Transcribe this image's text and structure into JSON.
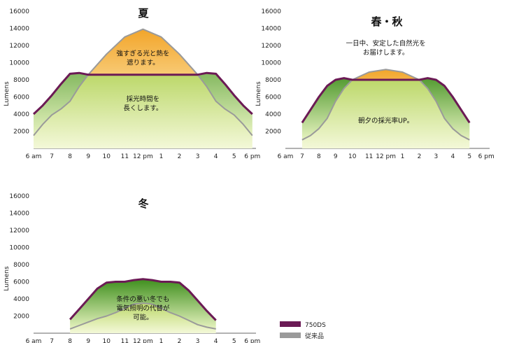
{
  "colors": {
    "series_750ds": "#6b1a55",
    "series_conventional": "#9a9a9a",
    "gain_fill_top": "#3f8f1e",
    "gain_fill_bottom": "#e7f3bf",
    "excess_fill_top": "#f2a52a",
    "excess_fill_bottom": "#fde9b4",
    "base_fill_top": "#bcd86a",
    "base_fill_bottom": "#f3f8d8"
  },
  "legend": {
    "items": [
      {
        "label": "750DS",
        "swatch": "series_750ds"
      },
      {
        "label": "従来品",
        "swatch": "series_conventional"
      }
    ]
  },
  "chart_data": [
    {
      "type": "area",
      "title": "夏",
      "ylabel": "Lumens",
      "ylim": [
        0,
        16000
      ],
      "yticks": [
        "16000",
        "14000",
        "12000",
        "10000",
        "8000",
        "6000",
        "4000",
        "2000"
      ],
      "xticks": [
        {
          "t": 6,
          "label": "6 am"
        },
        {
          "t": 7,
          "label": "7"
        },
        {
          "t": 8,
          "label": "8"
        },
        {
          "t": 9,
          "label": "9"
        },
        {
          "t": 10,
          "label": "10"
        },
        {
          "t": 11,
          "label": "11"
        },
        {
          "t": 12,
          "label": "12 pm"
        },
        {
          "t": 13,
          "label": "1"
        },
        {
          "t": 14,
          "label": "2"
        },
        {
          "t": 15,
          "label": "3"
        },
        {
          "t": 16,
          "label": "4"
        },
        {
          "t": 17,
          "label": "5"
        },
        {
          "t": 18,
          "label": "6 pm"
        }
      ],
      "xlim": [
        6,
        18.2
      ],
      "series": [
        {
          "name": "750DS",
          "x": [
            6,
            6.5,
            7,
            7.5,
            8,
            8.5,
            9,
            10,
            11,
            12,
            13,
            14,
            15,
            15.5,
            16,
            16.5,
            17,
            17.5,
            18
          ],
          "y": [
            4000,
            5000,
            6200,
            7500,
            8700,
            8800,
            8600,
            8600,
            8600,
            8600,
            8600,
            8600,
            8600,
            8800,
            8700,
            7500,
            6200,
            5000,
            4000
          ]
        },
        {
          "name": "従来品",
          "x": [
            6,
            6.5,
            7,
            7.5,
            8,
            8.5,
            9,
            10,
            11,
            12,
            13,
            14,
            15,
            15.5,
            16,
            16.5,
            17,
            17.5,
            18
          ],
          "y": [
            1500,
            2800,
            3900,
            4600,
            5500,
            7200,
            8600,
            11000,
            13000,
            13900,
            13000,
            11000,
            8600,
            7200,
            5500,
            4600,
            3900,
            2800,
            1500
          ]
        }
      ],
      "annotations": [
        {
          "lines": [
            "強すぎる光と熱を",
            "遮ります。"
          ],
          "x": 12,
          "y": 10800
        },
        {
          "lines": [
            "採光時間を",
            "長くします。"
          ],
          "x": 12,
          "y": 5500
        }
      ]
    },
    {
      "type": "area",
      "title": "春・秋",
      "ylabel": "Lumens",
      "ylim": [
        0,
        16000
      ],
      "yticks": [
        "16000",
        "14000",
        "12000",
        "10000",
        "8000",
        "6000",
        "4000",
        "2000"
      ],
      "xticks": [
        {
          "t": 6,
          "label": "6 am"
        },
        {
          "t": 7,
          "label": "7"
        },
        {
          "t": 8,
          "label": "8"
        },
        {
          "t": 9,
          "label": "9"
        },
        {
          "t": 10,
          "label": "10"
        },
        {
          "t": 11,
          "label": "11"
        },
        {
          "t": 12,
          "label": "12 pm"
        },
        {
          "t": 13,
          "label": "1"
        },
        {
          "t": 14,
          "label": "2"
        },
        {
          "t": 15,
          "label": "3"
        },
        {
          "t": 16,
          "label": "4"
        },
        {
          "t": 17,
          "label": "5"
        },
        {
          "t": 18,
          "label": "6 pm"
        }
      ],
      "xlim": [
        6,
        18.2
      ],
      "series": [
        {
          "name": "750DS",
          "x": [
            7,
            7.5,
            8,
            8.5,
            9,
            9.5,
            10,
            11,
            12,
            13,
            14,
            14.5,
            15,
            15.5,
            16,
            16.5,
            17
          ],
          "y": [
            3000,
            4500,
            6000,
            7300,
            8000,
            8200,
            8000,
            8000,
            8000,
            8000,
            8000,
            8200,
            8000,
            7300,
            6000,
            4500,
            3000
          ]
        },
        {
          "name": "従来品",
          "x": [
            7,
            7.5,
            8,
            8.5,
            9,
            9.5,
            10,
            11,
            12,
            13,
            14,
            14.5,
            15,
            15.5,
            16,
            16.5,
            17
          ],
          "y": [
            1000,
            1500,
            2300,
            3500,
            5500,
            7000,
            8000,
            8900,
            9200,
            8900,
            8000,
            7000,
            5500,
            3500,
            2300,
            1500,
            1000
          ]
        }
      ],
      "annotations": [
        {
          "lines": [
            "一日中、安定した自然光を",
            "お届けします。"
          ],
          "x": 12,
          "y": 12000
        },
        {
          "lines": [
            "朝夕の採光率UP。"
          ],
          "x": 12,
          "y": 3000
        }
      ]
    },
    {
      "type": "area",
      "title": "冬",
      "ylabel": "Lumens",
      "ylim": [
        0,
        16000
      ],
      "yticks": [
        "16000",
        "14000",
        "12000",
        "10000",
        "8000",
        "6000",
        "4000",
        "2000"
      ],
      "xticks": [
        {
          "t": 6,
          "label": "6 am"
        },
        {
          "t": 7,
          "label": "7"
        },
        {
          "t": 8,
          "label": "8"
        },
        {
          "t": 9,
          "label": "9"
        },
        {
          "t": 10,
          "label": "10"
        },
        {
          "t": 11,
          "label": "11"
        },
        {
          "t": 12,
          "label": "12 pm"
        },
        {
          "t": 13,
          "label": "1"
        },
        {
          "t": 14,
          "label": "2"
        },
        {
          "t": 15,
          "label": "3"
        },
        {
          "t": 16,
          "label": "4"
        },
        {
          "t": 17,
          "label": "5"
        },
        {
          "t": 18,
          "label": "6 pm"
        }
      ],
      "xlim": [
        6,
        18.2
      ],
      "series": [
        {
          "name": "750DS",
          "x": [
            8,
            8.5,
            9,
            9.5,
            10,
            10.5,
            11,
            11.5,
            12,
            12.5,
            13,
            13.5,
            14,
            14.5,
            15,
            15.5,
            16
          ],
          "y": [
            1600,
            2800,
            4000,
            5200,
            5900,
            6000,
            6000,
            6200,
            6300,
            6200,
            6000,
            6000,
            5900,
            5000,
            3800,
            2600,
            1500
          ]
        },
        {
          "name": "従来品",
          "x": [
            8,
            8.5,
            9,
            9.5,
            10,
            10.5,
            11,
            11.5,
            12,
            12.5,
            13,
            13.5,
            14,
            14.5,
            15,
            15.5,
            16
          ],
          "y": [
            500,
            900,
            1300,
            1700,
            2000,
            2400,
            2900,
            3400,
            3500,
            3400,
            2900,
            2400,
            2000,
            1500,
            1000,
            700,
            500
          ]
        }
      ],
      "annotations": [
        {
          "lines": [
            "条件の悪い冬でも",
            "電気照明の代替が",
            "可能。"
          ],
          "x": 12,
          "y": 3700
        }
      ]
    }
  ]
}
